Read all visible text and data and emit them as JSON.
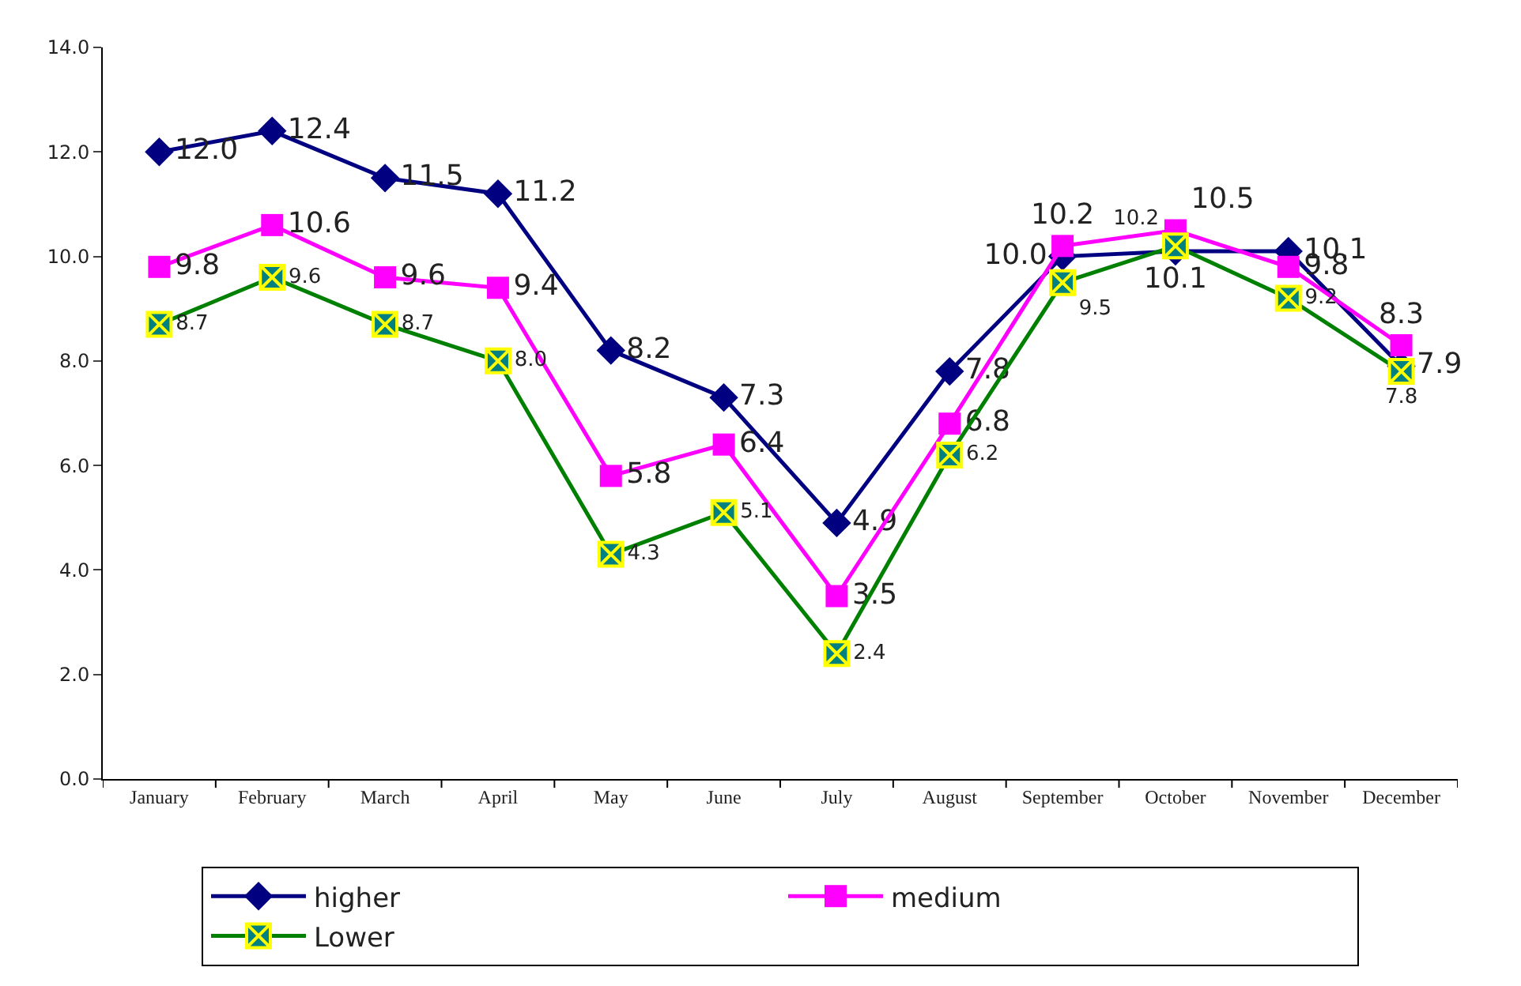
{
  "chart_data": {
    "type": "line",
    "categories": [
      "January",
      "February",
      "March",
      "April",
      "May",
      "June",
      "July",
      "August",
      "September",
      "October",
      "November",
      "December"
    ],
    "series": [
      {
        "name": "higher",
        "color": "#000080",
        "marker": "diamond",
        "values": [
          12.0,
          12.4,
          11.5,
          11.2,
          8.2,
          7.3,
          4.9,
          7.8,
          10.0,
          10.1,
          10.1,
          7.9
        ],
        "value_labels": [
          "12.0",
          "12.4",
          "11.5",
          "11.2",
          "8.2",
          "7.3",
          "4.9",
          "7.8",
          "10.0",
          "10.1",
          "10.1",
          "7.9"
        ]
      },
      {
        "name": "medium",
        "color": "#ff00ff",
        "marker": "square",
        "values": [
          9.8,
          10.6,
          9.6,
          9.4,
          5.8,
          6.4,
          3.5,
          6.8,
          10.2,
          10.5,
          9.8,
          8.3
        ],
        "value_labels": [
          "9.8",
          "10.6",
          "9.6",
          "9.4",
          "5.8",
          "6.4",
          "3.5",
          "6.8",
          "10.2",
          "10.5",
          "9.8",
          "8.3"
        ]
      },
      {
        "name": "Lower",
        "color": "#008000",
        "marker": "cross",
        "values": [
          8.7,
          9.6,
          8.7,
          8.0,
          4.3,
          5.1,
          2.4,
          6.2,
          9.5,
          10.2,
          9.2,
          7.8
        ],
        "value_labels": [
          "8.7",
          "9.6",
          "8.7",
          "8.0",
          "4.3",
          "5.1",
          "2.4",
          "6.2",
          "9.5",
          "10.2",
          "9.2",
          "7.8"
        ]
      }
    ],
    "ylim": [
      0,
      14
    ],
    "yticks": [
      {
        "value": 0,
        "label": "0.0"
      },
      {
        "value": 2,
        "label": "2.0"
      },
      {
        "value": 4,
        "label": "4.0"
      },
      {
        "value": 6,
        "label": "6.0"
      },
      {
        "value": 8,
        "label": "8.0"
      },
      {
        "value": 10,
        "label": "10.0"
      },
      {
        "value": 12,
        "label": "12.0"
      },
      {
        "value": 14,
        "label": "14.0"
      }
    ],
    "grid": false,
    "legend": "bottom",
    "line_style": "solid"
  }
}
